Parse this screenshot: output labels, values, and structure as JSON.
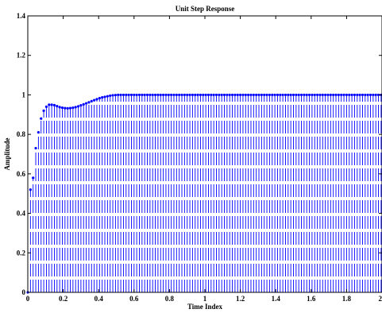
{
  "chart_data": {
    "type": "stem",
    "title": "Unit Step Response",
    "xlabel": "Time Index",
    "ylabel": "Amplitude",
    "xlim": [
      0,
      2
    ],
    "ylim": [
      0,
      1.4
    ],
    "xticks": [
      "0",
      "0.2",
      "0.4",
      "0.6",
      "0.8",
      "1",
      "1.2",
      "1.4",
      "1.6",
      "1.8",
      "2"
    ],
    "yticks": [
      "0",
      "0.2",
      "0.4",
      "0.6",
      "0.8",
      "1",
      "1.2",
      "1.4"
    ],
    "grid": false,
    "series_color": "#0000ff",
    "series": [
      {
        "dt": 0.015,
        "t_start": 0,
        "values": [
          0,
          0.52,
          0.58,
          0.73,
          0.81,
          0.88,
          0.92,
          0.94,
          0.95,
          0.95,
          0.948,
          0.943,
          0.938,
          0.935,
          0.933,
          0.932,
          0.933,
          0.935,
          0.938,
          0.942,
          0.947,
          0.952,
          0.957,
          0.962,
          0.968,
          0.973,
          0.978,
          0.983,
          0.987,
          0.99,
          0.993,
          0.996,
          0.998,
          0.999,
          1.0,
          1.0,
          1.0,
          1.0,
          1.0,
          1.0,
          1.0,
          1.0,
          1.0,
          1.0,
          1.0,
          1.0,
          1.0,
          1.0,
          1.0,
          1.0,
          1.0,
          1.0,
          1.0,
          1.0,
          1.0,
          1.0,
          1.0,
          1.0,
          1.0,
          1.0,
          1.0,
          1.0,
          1.0,
          1.0,
          1.0,
          1.0,
          1.0,
          1.0,
          1.0,
          1.0,
          1.0,
          1.0,
          1.0,
          1.0,
          1.0,
          1.0,
          1.0,
          1.0,
          1.0,
          1.0,
          1.0,
          1.0,
          1.0,
          1.0,
          1.0,
          1.0,
          1.0,
          1.0,
          1.0,
          1.0,
          1.0,
          1.0,
          1.0,
          1.0,
          1.0,
          1.0,
          1.0,
          1.0,
          1.0,
          1.0,
          1.0,
          1.0,
          1.0,
          1.0,
          1.0,
          1.0,
          1.0,
          1.0,
          1.0,
          1.0,
          1.0,
          1.0,
          1.0,
          1.0,
          1.0,
          1.0,
          1.0,
          1.0,
          1.0,
          1.0,
          1.0,
          1.0,
          1.0,
          1.0,
          1.0,
          1.0,
          1.0,
          1.0,
          1.0,
          1.0,
          1.0,
          1.0,
          1.0,
          1.0
        ]
      }
    ]
  }
}
